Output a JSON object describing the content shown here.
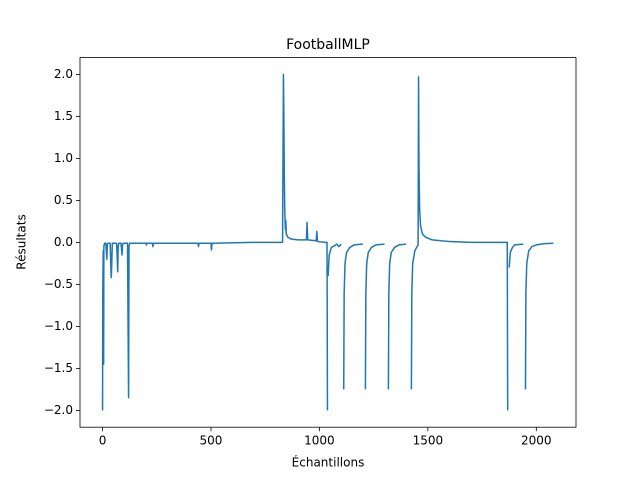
{
  "chart_data": {
    "type": "line",
    "title": "FootballMLP",
    "x_label": "Échantillons",
    "y_label": "Résultats",
    "x": [
      0,
      1,
      3,
      5,
      6,
      8,
      10,
      15,
      20,
      22,
      25,
      35,
      40,
      42,
      45,
      65,
      70,
      72,
      75,
      85,
      90,
      92,
      95,
      115,
      120,
      122,
      125,
      200,
      202,
      205,
      230,
      232,
      235,
      440,
      442,
      445,
      500,
      502,
      505,
      690,
      830,
      834,
      836,
      838,
      840,
      843,
      845,
      847,
      855,
      870,
      900,
      940,
      943,
      946,
      985,
      988,
      991,
      1030,
      1035,
      1037,
      null,
      1040,
      1045,
      1055,
      1070,
      1080,
      1090,
      1100,
      null,
      1112,
      1114,
      1118,
      1125,
      1140,
      1160,
      1200,
      null,
      1212,
      1214,
      1218,
      1225,
      1240,
      1260,
      1300,
      null,
      1318,
      1320,
      1324,
      1331,
      1346,
      1366,
      1400,
      null,
      1424,
      1426,
      1430,
      1440,
      1450,
      1455,
      1457,
      1459,
      1462,
      1466,
      1475,
      1490,
      1520,
      1600,
      1700,
      1866,
      1868,
      null,
      1875,
      1880,
      1890,
      1900,
      1940,
      null,
      1950,
      1952,
      1956,
      1965,
      1980,
      2000,
      2040,
      2079
    ],
    "series": [
      {
        "name": "Résultats",
        "color": "#1f77b4",
        "values": [
          -2.0,
          -0.6,
          -0.1,
          -1.45,
          -0.05,
          -0.02,
          -0.01,
          -0.01,
          -0.2,
          -0.02,
          -0.01,
          -0.01,
          -0.42,
          -0.3,
          -0.01,
          -0.01,
          -0.35,
          -0.05,
          -0.01,
          -0.01,
          -0.15,
          -0.03,
          -0.01,
          -0.01,
          -1.85,
          -0.05,
          -0.01,
          -0.01,
          -0.03,
          -0.01,
          -0.01,
          -0.05,
          -0.01,
          -0.01,
          -0.05,
          -0.01,
          -0.01,
          -0.09,
          -0.01,
          0,
          0,
          2.0,
          1.5,
          0.8,
          0.4,
          0.15,
          0.26,
          0.1,
          0.06,
          0.04,
          0.03,
          0.03,
          0.24,
          0.03,
          0.02,
          0.13,
          0.01,
          0,
          0,
          -2.0,
          null,
          -0.4,
          -0.15,
          -0.06,
          -0.04,
          -0.02,
          -0.05,
          -0.02,
          null,
          -1.75,
          -0.6,
          -0.25,
          -0.12,
          -0.06,
          -0.03,
          -0.02,
          null,
          -1.75,
          -0.6,
          -0.25,
          -0.12,
          -0.06,
          -0.03,
          -0.02,
          null,
          -1.75,
          -0.6,
          -0.25,
          -0.12,
          -0.06,
          -0.03,
          -0.02,
          null,
          -1.75,
          -0.6,
          -0.25,
          -0.1,
          -0.05,
          -0.03,
          1.97,
          0.9,
          0.4,
          0.2,
          0.1,
          0.06,
          0.03,
          0.01,
          0,
          0,
          -2.0,
          null,
          -0.3,
          -0.12,
          -0.06,
          -0.03,
          -0.02,
          null,
          -1.75,
          -0.6,
          -0.25,
          -0.1,
          -0.05,
          -0.03,
          -0.015,
          -0.01
        ]
      }
    ],
    "xlim": [
      -104,
      2183
    ],
    "ylim": [
      -2.2,
      2.2
    ],
    "xticks": [
      0,
      500,
      1000,
      1500,
      2000
    ],
    "yticks": [
      {
        "value": -2,
        "label": "−2.0"
      },
      {
        "value": -1.5,
        "label": "−1.5"
      },
      {
        "value": -1,
        "label": "−1.0"
      },
      {
        "value": -0.5,
        "label": "−0.5"
      },
      {
        "value": 0,
        "label": "0.0"
      },
      {
        "value": 0.5,
        "label": "0.5"
      },
      {
        "value": 1,
        "label": "1.0"
      },
      {
        "value": 1.5,
        "label": "1.5"
      },
      {
        "value": 2,
        "label": "2.0"
      }
    ]
  }
}
